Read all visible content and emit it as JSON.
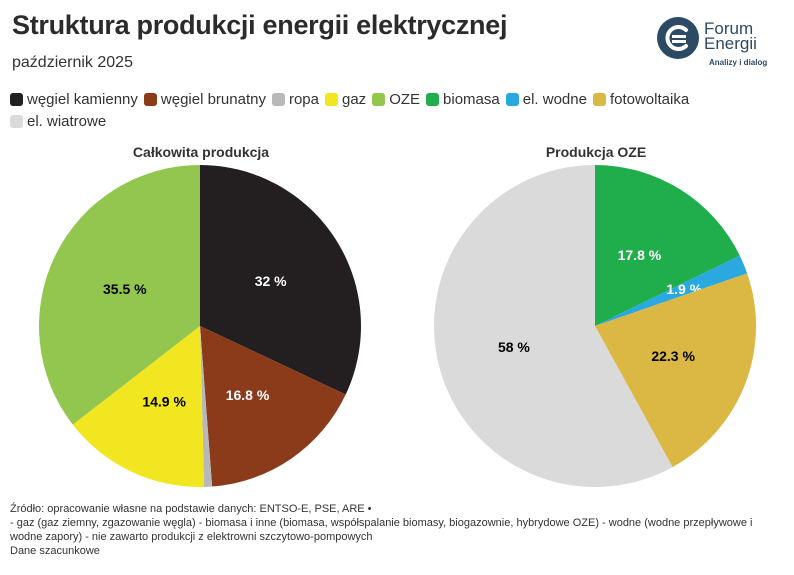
{
  "title": "Struktura produkcji energii elektrycznej",
  "subtitle": "październik 2025",
  "logo": {
    "line1": "Forum",
    "line2": "Energii",
    "tagline": "Analizy i dialog"
  },
  "legend": [
    {
      "label": "węgiel kamienny",
      "color": "#231f20"
    },
    {
      "label": "węgiel brunatny",
      "color": "#8b3a1a"
    },
    {
      "label": "ropa",
      "color": "#b8b8b8"
    },
    {
      "label": "gaz",
      "color": "#f2e620"
    },
    {
      "label": "OZE",
      "color": "#92c64e"
    },
    {
      "label": "biomasa",
      "color": "#1fae4b"
    },
    {
      "label": "el. wodne",
      "color": "#2aa8e0"
    },
    {
      "label": "fotowoltaika",
      "color": "#dbb843"
    },
    {
      "label": "el. wiatrowe",
      "color": "#dadada"
    }
  ],
  "chart_data": [
    {
      "type": "pie",
      "title": "Całkowita produkcja",
      "slices": [
        {
          "name": "węgiel kamienny",
          "value": 32,
          "label": "32 %",
          "color": "#231f20",
          "label_color": "#ffffff"
        },
        {
          "name": "węgiel brunatny",
          "value": 16.8,
          "label": "16.8 %",
          "color": "#8b3a1a",
          "label_color": "#ffffff"
        },
        {
          "name": "ropa",
          "value": 0.8,
          "label": "",
          "color": "#b8b8b8",
          "label_color": "#000000"
        },
        {
          "name": "gaz",
          "value": 14.9,
          "label": "14.9 %",
          "color": "#f2e620",
          "label_color": "#000000"
        },
        {
          "name": "OZE",
          "value": 35.5,
          "label": "35.5 %",
          "color": "#92c64e",
          "label_color": "#000000"
        }
      ]
    },
    {
      "type": "pie",
      "title": "Produkcja OZE",
      "slices": [
        {
          "name": "biomasa",
          "value": 17.8,
          "label": "17.8 %",
          "color": "#1fae4b",
          "label_color": "#ffffff"
        },
        {
          "name": "el. wodne",
          "value": 1.9,
          "label": "1.9 %",
          "color": "#2aa8e0",
          "label_color": "#ffffff"
        },
        {
          "name": "fotowoltaika",
          "value": 22.3,
          "label": "22.3 %",
          "color": "#dbb843",
          "label_color": "#000000"
        },
        {
          "name": "el. wiatrowe",
          "value": 58,
          "label": "58 %",
          "color": "#dadada",
          "label_color": "#000000"
        }
      ]
    }
  ],
  "footer": {
    "line1": "Źródło: opracowanie własne na podstawie danych: ENTSO-E, PSE, ARE •",
    "line2": "- gaz (gaz ziemny, zgazowanie węgla) - biomasa i inne (biomasa, współspalanie biomasy, biogazownie, hybrydowe OZE) - wodne (wodne przepływowe i wodne zapory) - nie zawarto produkcji z elektrowni szczytowo-pompowych",
    "line3": "Dane szacunkowe"
  }
}
